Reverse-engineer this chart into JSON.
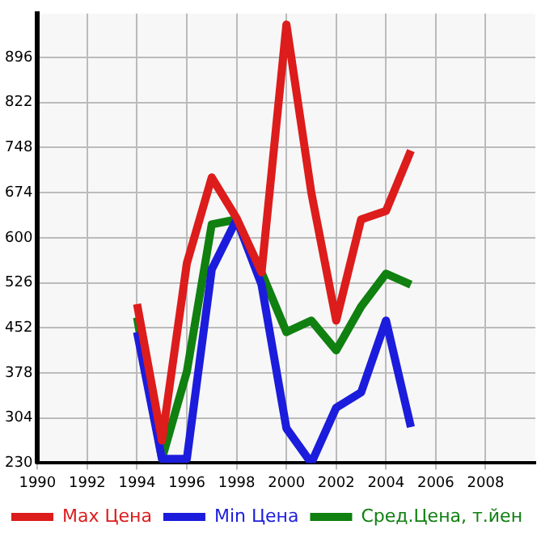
{
  "chart_data": {
    "type": "line",
    "x": [
      1994,
      1995,
      1996,
      1997,
      1998,
      1999,
      2000,
      2001,
      2002,
      2003,
      2004,
      2005
    ],
    "series": [
      {
        "name": "Max Цена",
        "color": "#dd1c1c",
        "values": [
          491,
          267,
          558,
          699,
          632,
          543,
          950,
          674,
          464,
          630,
          644,
          743
        ]
      },
      {
        "name": "Min Цена",
        "color": "#1c1cdd",
        "values": [
          445,
          237,
          237,
          548,
          630,
          523,
          287,
          230,
          321,
          346,
          464,
          289
        ]
      },
      {
        "name": "Сред.Цена, т.йен",
        "color": "#108010",
        "values": [
          469,
          237,
          380,
          622,
          630,
          543,
          445,
          464,
          415,
          487,
          541,
          523
        ]
      }
    ],
    "xlim": [
      1990,
      2010
    ],
    "xticks": [
      1990,
      1992,
      1994,
      1996,
      1998,
      2000,
      2002,
      2004,
      2006,
      2008
    ],
    "ylim": [
      230,
      968
    ],
    "yticks": [
      230,
      304,
      378,
      452,
      526,
      600,
      674,
      748,
      822,
      896
    ],
    "grid": true,
    "legend": "bottom",
    "marker": "none",
    "line_style": "solid"
  }
}
